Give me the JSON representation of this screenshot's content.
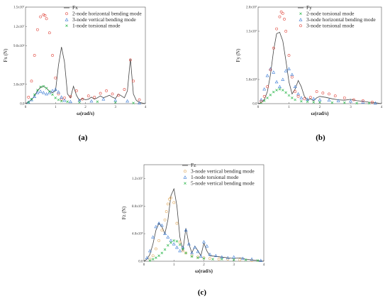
{
  "chart_data": [
    {
      "type": "line",
      "panel_label": "(a)",
      "ylabel": "Fx (N)",
      "xlabel": "ω(rad/s)",
      "xlim": [
        0,
        4
      ],
      "ylim": [
        0,
        15000000
      ],
      "xticks": [
        "0",
        "1",
        "2",
        "3",
        "4"
      ],
      "yticks": [
        {
          "value": 0,
          "label": "0.0"
        },
        {
          "value": 3000000,
          "label": "3.0x10⁶"
        },
        {
          "value": 9000000,
          "label": "9.0x10⁶"
        },
        {
          "value": 12000000,
          "label": "1.2x10⁷"
        },
        {
          "value": 15000000,
          "label": "1.5x10⁷"
        }
      ],
      "legend_position": "top-right",
      "series": [
        {
          "name": "Fx",
          "style": "line",
          "color": "#444444",
          "x": [
            0,
            0.1,
            0.2,
            0.3,
            0.4,
            0.5,
            0.6,
            0.7,
            0.8,
            0.9,
            1.0,
            1.1,
            1.2,
            1.3,
            1.4,
            1.5,
            1.6,
            1.7,
            1.8,
            1.9,
            2.0,
            2.1,
            2.2,
            2.3,
            2.4,
            2.5,
            2.6,
            2.7,
            2.8,
            2.9,
            3.0,
            3.1,
            3.2,
            3.3,
            3.4,
            3.5,
            3.6,
            3.7,
            3.8,
            3.9,
            4.0
          ],
          "y": [
            0,
            300000,
            600000,
            1200000,
            2000000,
            2500000,
            2700000,
            2400000,
            1900000,
            1700000,
            2000000,
            6000000,
            8800000,
            6500000,
            1500000,
            900000,
            2700000,
            1300000,
            500000,
            800000,
            600000,
            700000,
            1000000,
            700000,
            900000,
            1200000,
            900000,
            1100000,
            1300000,
            1000000,
            800000,
            1500000,
            1200000,
            900000,
            2000000,
            7000000,
            1500000,
            500000,
            200000,
            100000,
            0
          ]
        },
        {
          "name": "2-node horizontal bending mode",
          "style": "circle",
          "color": "#e0463c",
          "x": [
            0.1,
            0.2,
            0.3,
            0.4,
            0.5,
            0.6,
            0.65,
            0.7,
            0.8,
            0.9,
            1.0,
            1.1,
            1.2,
            1.3,
            1.5,
            1.7,
            1.9,
            2.1,
            2.3,
            2.5,
            2.7,
            2.9,
            3.1,
            3.3,
            3.5,
            3.6,
            3.8
          ],
          "y": [
            1000000,
            3500000,
            7500000,
            11500000,
            13500000,
            13800000,
            13700000,
            13200000,
            11000000,
            7500000,
            4000000,
            1500000,
            700000,
            900000,
            1100000,
            2000000,
            700000,
            1200000,
            1000000,
            1600000,
            2000000,
            1500000,
            1300000,
            2200000,
            6800000,
            3500000,
            600000
          ]
        },
        {
          "name": "3-node vertical bending mode",
          "style": "triangle",
          "color": "#3a7bd5",
          "x": [
            0.1,
            0.2,
            0.3,
            0.4,
            0.5,
            0.6,
            0.7,
            0.8,
            0.9,
            1.0,
            1.1,
            1.2,
            1.3,
            1.5,
            1.8,
            2.2,
            2.6,
            3.0,
            3.4,
            3.8
          ],
          "y": [
            200000,
            600000,
            1100000,
            1700000,
            1900000,
            1700000,
            1500000,
            1700000,
            2000000,
            2200000,
            1800000,
            1000000,
            500000,
            300000,
            500000,
            400000,
            700000,
            500000,
            400000,
            100000
          ]
        },
        {
          "name": "1-node torsional mode",
          "style": "cross",
          "color": "#2db84d",
          "x": [
            0.1,
            0.2,
            0.3,
            0.4,
            0.5,
            0.6,
            0.7,
            0.8,
            0.9,
            1.0,
            1.1,
            1.2,
            1.4,
            1.8,
            2.4,
            3.0,
            3.6
          ],
          "y": [
            200000,
            700000,
            1400000,
            2100000,
            2600000,
            2700000,
            2400000,
            1900000,
            1400000,
            900000,
            600000,
            400000,
            300000,
            200000,
            300000,
            200000,
            100000
          ]
        }
      ]
    },
    {
      "type": "line",
      "panel_label": "(b)",
      "ylabel": "Fy (N)",
      "xlabel": "ω(rad/s)",
      "xlim": [
        0,
        4
      ],
      "ylim": [
        0,
        20000000
      ],
      "xticks": [
        "0",
        "1",
        "2",
        "3",
        "4"
      ],
      "yticks": [
        {
          "value": 0,
          "label": "0.0"
        },
        {
          "value": 5000000,
          "label": "5.0x10⁶"
        },
        {
          "value": 15000000,
          "label": "1.5x10⁷"
        },
        {
          "value": 20000000,
          "label": "2.0x10⁷"
        }
      ],
      "legend_position": "top-right",
      "series": [
        {
          "name": "Fy",
          "style": "line",
          "color": "#444444",
          "x": [
            0,
            0.1,
            0.2,
            0.3,
            0.4,
            0.5,
            0.6,
            0.7,
            0.8,
            0.9,
            1.0,
            1.1,
            1.2,
            1.3,
            1.4,
            1.5,
            1.6,
            1.7,
            1.8,
            1.9,
            2.0,
            2.2,
            2.4,
            2.6,
            2.8,
            3.0,
            3.2,
            3.4,
            3.6,
            3.8,
            4.0
          ],
          "y": [
            0,
            200000,
            800000,
            2500000,
            6000000,
            11000000,
            14500000,
            14800000,
            13000000,
            9000000,
            4500000,
            2000000,
            3000000,
            4800000,
            3500000,
            1500000,
            800000,
            1000000,
            600000,
            1200000,
            1500000,
            1300000,
            1000000,
            800000,
            700000,
            900000,
            600000,
            500000,
            300000,
            200000,
            0
          ]
        },
        {
          "name": "2-node torsional mode",
          "style": "cross",
          "color": "#2db84d",
          "x": [
            0.1,
            0.2,
            0.3,
            0.4,
            0.5,
            0.6,
            0.7,
            0.8,
            0.9,
            1.0,
            1.1,
            1.2,
            1.4,
            1.6,
            1.8,
            2.0,
            2.4,
            2.8,
            3.2,
            3.6
          ],
          "y": [
            200000,
            600000,
            1200000,
            1800000,
            2400000,
            2800000,
            3000000,
            2800000,
            2300000,
            1700000,
            1200000,
            800000,
            500000,
            400000,
            300000,
            300000,
            200000,
            200000,
            100000,
            100000
          ]
        },
        {
          "name": "3-node horizontal bending mode",
          "style": "triangle",
          "color": "#3a7bd5",
          "x": [
            0.1,
            0.2,
            0.3,
            0.4,
            0.5,
            0.6,
            0.7,
            0.8,
            0.9,
            1.0,
            1.1,
            1.2,
            1.3,
            1.4,
            1.6,
            1.8,
            2.0,
            2.3,
            2.6,
            3.0,
            3.4,
            3.8
          ],
          "y": [
            800000,
            3000000,
            5800000,
            7200000,
            6500000,
            4500000,
            3500000,
            5000000,
            6800000,
            7200000,
            6000000,
            3500000,
            2000000,
            1200000,
            900000,
            1000000,
            800000,
            700000,
            600000,
            500000,
            300000,
            100000
          ]
        },
        {
          "name": "3-node torsional mode",
          "style": "circle",
          "color": "#e0463c",
          "x": [
            0.1,
            0.2,
            0.3,
            0.4,
            0.5,
            0.6,
            0.7,
            0.75,
            0.8,
            0.85,
            0.9,
            1.0,
            1.1,
            1.2,
            1.3,
            1.5,
            1.7,
            1.9,
            2.1,
            2.3,
            2.5,
            2.8,
            3.1,
            3.4,
            3.7
          ],
          "y": [
            500000,
            1500000,
            3500000,
            7000000,
            11500000,
            15500000,
            18000000,
            19000000,
            18700000,
            17500000,
            15000000,
            10000000,
            5500000,
            2500000,
            1500000,
            1000000,
            1300000,
            2500000,
            2200000,
            2000000,
            1600000,
            1200000,
            800000,
            600000,
            300000
          ]
        }
      ]
    },
    {
      "type": "line",
      "panel_label": "(c)",
      "ylabel": "Fz (N)",
      "xlabel": "ω(rad/s)",
      "xlim": [
        0,
        4
      ],
      "ylim": [
        0,
        14000000
      ],
      "xticks": [
        "0",
        "1",
        "2",
        "3",
        "4"
      ],
      "yticks": [
        {
          "value": 0,
          "label": "0.0"
        },
        {
          "value": 4000000,
          "label": "4.0x10⁶"
        },
        {
          "value": 8000000,
          "label": "8.0x10⁶"
        },
        {
          "value": 12000000,
          "label": "1.2x10⁷"
        }
      ],
      "legend_position": "top-right",
      "series": [
        {
          "name": "Fz",
          "style": "line",
          "color": "#444444",
          "x": [
            0,
            0.1,
            0.2,
            0.3,
            0.4,
            0.5,
            0.6,
            0.7,
            0.8,
            0.9,
            1.0,
            1.1,
            1.2,
            1.3,
            1.4,
            1.5,
            1.6,
            1.7,
            1.8,
            1.9,
            2.0,
            2.1,
            2.2,
            2.4,
            2.6,
            2.8,
            3.0,
            3.2,
            3.4,
            3.6,
            3.8,
            4.0
          ],
          "y": [
            0,
            300000,
            1000000,
            2500000,
            4500000,
            5500000,
            5000000,
            4000000,
            6000000,
            9500000,
            10500000,
            8000000,
            3500000,
            1500000,
            4800000,
            2500000,
            1200000,
            2200000,
            1500000,
            800000,
            2600000,
            1500000,
            800000,
            700000,
            600000,
            500000,
            400000,
            500000,
            300000,
            200000,
            100000,
            0
          ]
        },
        {
          "name": "3-node vertical bending mode",
          "style": "circle",
          "color": "#e0a85a",
          "x": [
            0.2,
            0.3,
            0.4,
            0.5,
            0.6,
            0.7,
            0.75,
            0.8,
            0.85,
            0.9,
            1.0,
            1.1,
            1.2,
            1.3,
            1.4,
            1.6,
            1.8,
            2.0,
            2.2,
            2.5,
            2.8,
            3.2,
            3.6
          ],
          "y": [
            300000,
            800000,
            1800000,
            3000000,
            4500000,
            6000000,
            7200000,
            8300000,
            9000000,
            9200000,
            8500000,
            5500000,
            2800000,
            1500000,
            1200000,
            800000,
            600000,
            500000,
            400000,
            300000,
            300000,
            200000,
            100000
          ]
        },
        {
          "name": "1-node torsional mode",
          "style": "triangle",
          "color": "#3a7bd5",
          "x": [
            0.1,
            0.2,
            0.3,
            0.4,
            0.5,
            0.6,
            0.7,
            0.8,
            0.9,
            1.0,
            1.1,
            1.2,
            1.3,
            1.4,
            1.5,
            1.6,
            1.7,
            1.8,
            1.9,
            2.0,
            2.1,
            2.2,
            2.4,
            2.6,
            2.8,
            3.0,
            3.3,
            3.6,
            3.9
          ],
          "y": [
            500000,
            1500000,
            3500000,
            5000000,
            5500000,
            5200000,
            4000000,
            3500000,
            3000000,
            2500000,
            2000000,
            1500000,
            2000000,
            4500000,
            2500000,
            1200000,
            2000000,
            1400000,
            700000,
            2800000,
            2200000,
            1000000,
            800000,
            600000,
            500000,
            600000,
            400000,
            300000,
            100000
          ]
        },
        {
          "name": "5-node vertical bending mode",
          "style": "cross",
          "color": "#2db84d",
          "x": [
            0.2,
            0.3,
            0.4,
            0.5,
            0.6,
            0.7,
            0.8,
            0.9,
            1.0,
            1.1,
            1.2,
            1.3,
            1.4,
            1.6,
            1.8,
            2.0,
            2.3,
            2.6,
            3.0,
            3.4,
            3.8
          ],
          "y": [
            100000,
            300000,
            500000,
            800000,
            1200000,
            1700000,
            2300000,
            2700000,
            3000000,
            2900000,
            2400000,
            1800000,
            1200000,
            700000,
            500000,
            400000,
            300000,
            300000,
            200000,
            200000,
            100000
          ]
        }
      ]
    }
  ]
}
